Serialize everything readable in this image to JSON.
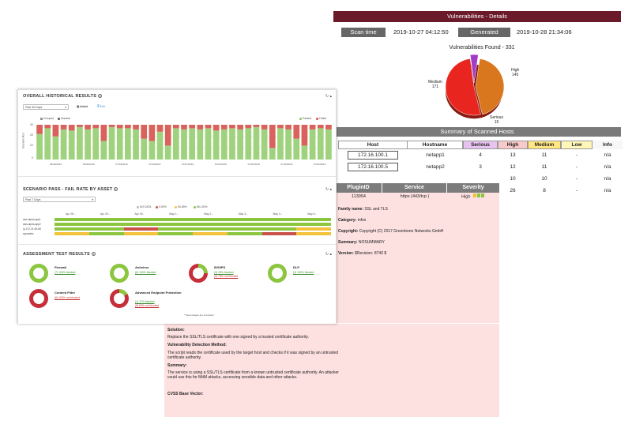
{
  "report": {
    "title": "Vulnerabilities - Details",
    "scan_time_label": "Scan time",
    "scan_time": "2019-10-27 04:12:50",
    "generated_label": "Generated",
    "generated": "2019-10-28 21:34:06",
    "vulns_found": "Vulnerabilities Found - 331",
    "pie": [
      {
        "name": "High",
        "value": 145,
        "color": "#d9771f"
      },
      {
        "name": "Medium",
        "value": 171,
        "color": "#e8251e"
      },
      {
        "name": "Serious",
        "value": 15,
        "color": "#a23cc8"
      }
    ],
    "summary_title": "Summary of Scanned Hosts",
    "columns": [
      "Host",
      "Hostname",
      "Serious",
      "High",
      "Medium",
      "Low",
      "Info"
    ],
    "hosts": [
      {
        "host": "172.16.100.1",
        "hostname": "netapp1",
        "serious": "4",
        "high": "13",
        "medium": "11",
        "low": "-",
        "info": "n/a"
      },
      {
        "host": "172.16.100.5",
        "hostname": "netapp2",
        "serious": "3",
        "high": "12",
        "medium": "11",
        "low": "-",
        "info": "n/a"
      },
      {
        "host": "",
        "hostname": "",
        "serious": "",
        "high": "10",
        "medium": "10",
        "low": "-",
        "info": "n/a"
      },
      {
        "host": "",
        "hostname": "",
        "serious": "",
        "high": "26",
        "medium": "8",
        "low": "-",
        "info": "n/a"
      }
    ],
    "plugin": {
      "headers": [
        "PluginID",
        "Service",
        "Severity"
      ],
      "id": "113054",
      "service": "https (443/tcp )",
      "severity": "High",
      "family_label": "Family name:",
      "family": "SSL and TLS",
      "category_label": "Category:",
      "category": "infos",
      "copyright_label": "Copyright:",
      "copyright": "Copyright (C) 2017 Greenbone Networks GmbH",
      "summary_label": "Summary:",
      "summary": "NOSUMMARY",
      "version_label": "Version:",
      "version": "$Revision: 8740 $"
    },
    "details": {
      "solution_label": "Solution:",
      "solution": "Replace the SSL/TLS certificate with one signed by a trusted certificate authority.",
      "method_label": "Vulnerability Detection Method:",
      "method": "The script reads the certificate used by the target host and checks if it was signed by an untrusted certificate authority.",
      "summary_label": "Summary:",
      "summary": "The service is using a SSL/TLS certificate from a known untrusted certificate authority. An attacker could use this for MitM attacks, accessing sensible data and other attacks.",
      "cvss_label": "CVSS Base Vector:"
    }
  },
  "dashboard": {
    "historical": {
      "title": "OVERALL HISTORICAL RESULTS",
      "range": "Past 30 Days",
      "btn_attack": "Attack",
      "btn_edit": "Edit",
      "opt_grouped": "Grouped",
      "opt_stacked": "Stacked",
      "legend_passed": "Passed",
      "legend_failed": "Failed",
      "ylabel": "Scenario Run",
      "y_ticks": [
        "30",
        "20",
        "10",
        "0"
      ],
      "x_labels": [
        "06/26/2019",
        "06/30/2019",
        "07/01/2019",
        "07/04/2019",
        "07/07/2019",
        "07/11/2019",
        "07/15/2019",
        "07/19/2019",
        "07/22/2019"
      ],
      "bars": [
        {
          "passed": 22,
          "failed": 8
        },
        {
          "passed": 27,
          "failed": 3
        },
        {
          "passed": 20,
          "failed": 10
        },
        {
          "passed": 26,
          "failed": 4
        },
        {
          "passed": 25,
          "failed": 5
        },
        {
          "passed": 28,
          "failed": 2
        },
        {
          "passed": 26,
          "failed": 4
        },
        {
          "passed": 27,
          "failed": 3
        },
        {
          "passed": 16,
          "failed": 14
        },
        {
          "passed": 28,
          "failed": 2
        },
        {
          "passed": 27,
          "failed": 3
        },
        {
          "passed": 27,
          "failed": 3
        },
        {
          "passed": 26,
          "failed": 4
        },
        {
          "passed": 18,
          "failed": 12
        },
        {
          "passed": 16,
          "failed": 14
        },
        {
          "passed": 24,
          "failed": 6
        },
        {
          "passed": 12,
          "failed": 18
        },
        {
          "passed": 27,
          "failed": 3
        },
        {
          "passed": 26,
          "failed": 4
        },
        {
          "passed": 27,
          "failed": 3
        },
        {
          "passed": 26,
          "failed": 4
        },
        {
          "passed": 27,
          "failed": 3
        },
        {
          "passed": 25,
          "failed": 5
        },
        {
          "passed": 26,
          "failed": 4
        },
        {
          "passed": 27,
          "failed": 3
        },
        {
          "passed": 26,
          "failed": 4
        },
        {
          "passed": 27,
          "failed": 3
        },
        {
          "passed": 28,
          "failed": 2
        },
        {
          "passed": 26,
          "failed": 4
        },
        {
          "passed": 10,
          "failed": 20
        },
        {
          "passed": 27,
          "failed": 3
        },
        {
          "passed": 26,
          "failed": 4
        },
        {
          "passed": 18,
          "failed": 12
        },
        {
          "passed": 12,
          "failed": 18
        },
        {
          "passed": 26,
          "failed": 4
        },
        {
          "passed": 27,
          "failed": 3
        },
        {
          "passed": 26,
          "failed": 4
        }
      ]
    },
    "scenario": {
      "title": "SCENARIO PASS - FAIL RATE BY ASSET",
      "range": "Past 7 Days",
      "legend": [
        "NO DATA",
        "0-50%",
        "50-85%",
        "86-100%"
      ],
      "legend_colors": [
        "#bbbbbb",
        "#c9534c",
        "#f2c23a",
        "#8cc63f"
      ],
      "dates": [
        "Apr 28...",
        "Apr 29...",
        "Apr 30...",
        "May 1...",
        "May 2...",
        "May 3...",
        "May 4...",
        "May 5..."
      ],
      "assets": [
        {
          "name": "aws-alpha-app1",
          "segments": [
            "#8cc63f",
            "#8cc63f",
            "#8cc63f",
            "#8cc63f",
            "#8cc63f",
            "#8cc63f",
            "#8cc63f",
            "#8cc63f"
          ]
        },
        {
          "name": "aws-alpha-app2",
          "segments": [
            "#8cc63f",
            "#8cc63f",
            "#8cc63f",
            "#8cc63f",
            "#8cc63f",
            "#8cc63f",
            "#8cc63f",
            "#8cc63f"
          ]
        },
        {
          "name": "ip-172-31-99-68",
          "segments": [
            "#8cc63f",
            "#8cc63f",
            "#c9534c",
            "#8cc63f",
            "#8cc63f",
            "#8cc63f",
            "#8cc63f",
            "#f2c23a"
          ]
        },
        {
          "name": "symantec",
          "segments": [
            "#f2c23a",
            "#8cc63f",
            "#f2c23a",
            "#8cc63f",
            "#f2c23a",
            "#8cc63f",
            "#c9534c",
            "#f2c23a"
          ]
        }
      ]
    },
    "assessment": {
      "title": "ASSESSMENT TEST RESULTS",
      "footnote": "* Percentages are truncated",
      "tests": [
        {
          "name": "Firewall",
          "lines": [
            {
              "text": "(7) 100% blocked",
              "cls": "ok"
            }
          ],
          "pass": 100
        },
        {
          "name": "Antivirus",
          "lines": [
            {
              "text": "(6) 100% blocked",
              "cls": "ok"
            }
          ],
          "pass": 100
        },
        {
          "name": "IDS/IPS",
          "lines": [
            {
              "text": "(3) 25% blocked",
              "cls": "ok"
            },
            {
              "text": "(9) 75% not blocked",
              "cls": "bad"
            }
          ],
          "pass": 25
        },
        {
          "name": "DLP",
          "lines": [
            {
              "text": "(2) 100% blocked",
              "cls": "ok"
            }
          ],
          "pass": 100
        },
        {
          "name": "Content Filter",
          "lines": [
            {
              "text": "(6) 100% not blocked",
              "cls": "bad"
            }
          ],
          "pass": 0
        },
        {
          "name": "Advanced Endpoint Protection",
          "lines": [
            {
              "text": "(1) 17% blocked",
              "cls": "ok"
            },
            {
              "text": "(5) 83% not blocked",
              "cls": "bad"
            }
          ],
          "pass": 17
        }
      ]
    }
  }
}
